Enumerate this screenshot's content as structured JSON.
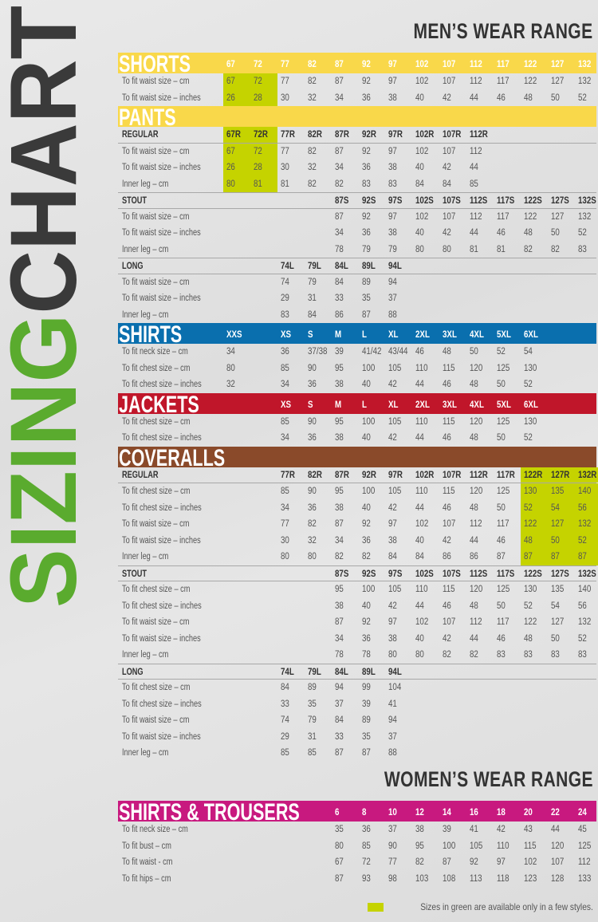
{
  "colors": {
    "green_available": "#c5d300",
    "sizing": "#5aab2e",
    "chart": "#3a3a3a"
  },
  "vertical_title": {
    "part1": "SIZING",
    "part2": "CHART"
  },
  "mens_title": "MEN’S WEAR RANGE",
  "womens_title": "WOMEN’S WEAR RANGE",
  "legend": {
    "text": "Sizes in green are available only in a few styles."
  },
  "mens_sections": [
    {
      "title": "SHORTS",
      "color": "#f9d84a",
      "bar_sizes": [
        "67",
        "72",
        "77",
        "82",
        "87",
        "92",
        "97",
        "102",
        "107",
        "112",
        "117",
        "122",
        "127",
        "132"
      ],
      "groups": [
        {
          "heading": "",
          "green_columns": [
            0,
            1
          ],
          "green_heading": false,
          "sizes": [],
          "rows": [
            {
              "label": "To fit waist size – cm",
              "values": [
                "67",
                "72",
                "77",
                "82",
                "87",
                "92",
                "97",
                "102",
                "107",
                "112",
                "117",
                "122",
                "127",
                "132"
              ]
            },
            {
              "label": "To fit waist size – inches",
              "values": [
                "26",
                "28",
                "30",
                "32",
                "34",
                "36",
                "38",
                "40",
                "42",
                "44",
                "46",
                "48",
                "50",
                "52"
              ]
            }
          ]
        }
      ]
    },
    {
      "title": "PANTS",
      "color": "#f9d84a",
      "bar_sizes": [],
      "groups": [
        {
          "heading": "REGULAR",
          "green_columns": [
            0,
            1
          ],
          "green_heading": true,
          "sizes": [
            "67R",
            "72R",
            "77R",
            "82R",
            "87R",
            "92R",
            "97R",
            "102R",
            "107R",
            "112R",
            "",
            "",
            "",
            ""
          ],
          "rows": [
            {
              "label": "To fit waist size – cm",
              "values": [
                "67",
                "72",
                "77",
                "82",
                "87",
                "92",
                "97",
                "102",
                "107",
                "112",
                "",
                "",
                "",
                ""
              ]
            },
            {
              "label": "To fit waist size – inches",
              "values": [
                "26",
                "28",
                "30",
                "32",
                "34",
                "36",
                "38",
                "40",
                "42",
                "44",
                "",
                "",
                "",
                ""
              ]
            },
            {
              "label": "Inner leg – cm",
              "values": [
                "80",
                "81",
                "81",
                "82",
                "82",
                "83",
                "83",
                "84",
                "84",
                "85",
                "",
                "",
                "",
                ""
              ]
            }
          ]
        },
        {
          "heading": "STOUT",
          "green_columns": [],
          "green_heading": false,
          "sizes": [
            "",
            "",
            "",
            "",
            "87S",
            "92S",
            "97S",
            "102S",
            "107S",
            "112S",
            "117S",
            "122S",
            "127S",
            "132S"
          ],
          "rows": [
            {
              "label": "To fit waist size – cm",
              "values": [
                "",
                "",
                "",
                "",
                "87",
                "92",
                "97",
                "102",
                "107",
                "112",
                "117",
                "122",
                "127",
                "132"
              ]
            },
            {
              "label": "To fit waist size – inches",
              "values": [
                "",
                "",
                "",
                "",
                "34",
                "36",
                "38",
                "40",
                "42",
                "44",
                "46",
                "48",
                "50",
                "52"
              ]
            },
            {
              "label": "Inner leg – cm",
              "values": [
                "",
                "",
                "",
                "",
                "78",
                "79",
                "79",
                "80",
                "80",
                "81",
                "81",
                "82",
                "82",
                "83"
              ]
            }
          ]
        },
        {
          "heading": "LONG",
          "green_columns": [],
          "green_heading": false,
          "sizes": [
            "",
            "",
            "74L",
            "79L",
            "84L",
            "89L",
            "94L",
            "",
            "",
            "",
            "",
            "",
            "",
            ""
          ],
          "rows": [
            {
              "label": "To fit waist size – cm",
              "values": [
                "",
                "",
                "74",
                "79",
                "84",
                "89",
                "94",
                "",
                "",
                "",
                "",
                "",
                "",
                ""
              ]
            },
            {
              "label": "To fit waist size – inches",
              "values": [
                "",
                "",
                "29",
                "31",
                "33",
                "35",
                "37",
                "",
                "",
                "",
                "",
                "",
                "",
                ""
              ]
            },
            {
              "label": "Inner leg – cm",
              "values": [
                "",
                "",
                "83",
                "84",
                "86",
                "87",
                "88",
                "",
                "",
                "",
                "",
                "",
                "",
                ""
              ]
            }
          ]
        }
      ]
    },
    {
      "title": "SHIRTS",
      "color": "#0a6fae",
      "bar_sizes": [
        "XXS",
        "",
        "XS",
        "S",
        "M",
        "L",
        "XL",
        "2XL",
        "3XL",
        "4XL",
        "5XL",
        "6XL",
        "",
        ""
      ],
      "groups": [
        {
          "heading": "",
          "green_columns": [],
          "green_heading": false,
          "sizes": [],
          "rows": [
            {
              "label": "To fit neck size – cm",
              "values": [
                "34",
                "",
                "36",
                "37/38",
                "39",
                "41/42",
                "43/44",
                "46",
                "48",
                "50",
                "52",
                "54",
                "",
                ""
              ]
            },
            {
              "label": "To fit chest size – cm",
              "values": [
                "80",
                "",
                "85",
                "90",
                "95",
                "100",
                "105",
                "110",
                "115",
                "120",
                "125",
                "130",
                "",
                ""
              ]
            },
            {
              "label": "To fit chest size – inches",
              "values": [
                "32",
                "",
                "34",
                "36",
                "38",
                "40",
                "42",
                "44",
                "46",
                "48",
                "50",
                "52",
                "",
                ""
              ]
            }
          ]
        }
      ]
    },
    {
      "title": "JACKETS",
      "color": "#c0162a",
      "bar_sizes": [
        "",
        "",
        "XS",
        "S",
        "M",
        "L",
        "XL",
        "2XL",
        "3XL",
        "4XL",
        "5XL",
        "6XL",
        "",
        ""
      ],
      "groups": [
        {
          "heading": "",
          "green_columns": [],
          "green_heading": false,
          "sizes": [],
          "rows": [
            {
              "label": "To fit chest size – cm",
              "values": [
                "",
                "",
                "85",
                "90",
                "95",
                "100",
                "105",
                "110",
                "115",
                "120",
                "125",
                "130",
                "",
                ""
              ]
            },
            {
              "label": "To fit chest size – inches",
              "values": [
                "",
                "",
                "34",
                "36",
                "38",
                "40",
                "42",
                "44",
                "46",
                "48",
                "50",
                "52",
                "",
                ""
              ]
            }
          ]
        }
      ]
    },
    {
      "title": "COVERALLS",
      "color": "#8a4a2a",
      "bar_sizes": [],
      "groups": [
        {
          "heading": "REGULAR",
          "green_columns": [
            11,
            12,
            13
          ],
          "green_heading": true,
          "sizes": [
            "",
            "",
            "77R",
            "82R",
            "87R",
            "92R",
            "97R",
            "102R",
            "107R",
            "112R",
            "117R",
            "122R",
            "127R",
            "132R"
          ],
          "rows": [
            {
              "label": "To fit chest size – cm",
              "values": [
                "",
                "",
                "85",
                "90",
                "95",
                "100",
                "105",
                "110",
                "115",
                "120",
                "125",
                "130",
                "135",
                "140"
              ]
            },
            {
              "label": "To fit chest size – inches",
              "values": [
                "",
                "",
                "34",
                "36",
                "38",
                "40",
                "42",
                "44",
                "46",
                "48",
                "50",
                "52",
                "54",
                "56"
              ]
            },
            {
              "label": "To fit waist size – cm",
              "values": [
                "",
                "",
                "77",
                "82",
                "87",
                "92",
                "97",
                "102",
                "107",
                "112",
                "117",
                "122",
                "127",
                "132"
              ]
            },
            {
              "label": "To fit waist size – inches",
              "values": [
                "",
                "",
                "30",
                "32",
                "34",
                "36",
                "38",
                "40",
                "42",
                "44",
                "46",
                "48",
                "50",
                "52"
              ]
            },
            {
              "label": "Inner leg – cm",
              "values": [
                "",
                "",
                "80",
                "80",
                "82",
                "82",
                "84",
                "84",
                "86",
                "86",
                "87",
                "87",
                "87",
                "87"
              ]
            }
          ]
        },
        {
          "heading": "STOUT",
          "green_columns": [],
          "green_heading": false,
          "sizes": [
            "",
            "",
            "",
            "",
            "87S",
            "92S",
            "97S",
            "102S",
            "107S",
            "112S",
            "117S",
            "122S",
            "127S",
            "132S"
          ],
          "rows": [
            {
              "label": "To fit chest size – cm",
              "values": [
                "",
                "",
                "",
                "",
                "95",
                "100",
                "105",
                "110",
                "115",
                "120",
                "125",
                "130",
                "135",
                "140"
              ]
            },
            {
              "label": "To fit chest size – inches",
              "values": [
                "",
                "",
                "",
                "",
                "38",
                "40",
                "42",
                "44",
                "46",
                "48",
                "50",
                "52",
                "54",
                "56"
              ]
            },
            {
              "label": "To fit waist size – cm",
              "values": [
                "",
                "",
                "",
                "",
                "87",
                "92",
                "97",
                "102",
                "107",
                "112",
                "117",
                "122",
                "127",
                "132"
              ]
            },
            {
              "label": "To fit waist size – inches",
              "values": [
                "",
                "",
                "",
                "",
                "34",
                "36",
                "38",
                "40",
                "42",
                "44",
                "46",
                "48",
                "50",
                "52"
              ]
            },
            {
              "label": "Inner leg – cm",
              "values": [
                "",
                "",
                "",
                "",
                "78",
                "78",
                "80",
                "80",
                "82",
                "82",
                "83",
                "83",
                "83",
                "83"
              ]
            }
          ]
        },
        {
          "heading": "LONG",
          "green_columns": [],
          "green_heading": false,
          "sizes": [
            "",
            "",
            "74L",
            "79L",
            "84L",
            "89L",
            "94L",
            "",
            "",
            "",
            "",
            "",
            "",
            ""
          ],
          "rows": [
            {
              "label": "To fit chest size – cm",
              "values": [
                "",
                "",
                "84",
                "89",
                "94",
                "99",
                "104",
                "",
                "",
                "",
                "",
                "",
                "",
                ""
              ]
            },
            {
              "label": "To fit chest size – inches",
              "values": [
                "",
                "",
                "33",
                "35",
                "37",
                "39",
                "41",
                "",
                "",
                "",
                "",
                "",
                "",
                ""
              ]
            },
            {
              "label": "To fit waist size – cm",
              "values": [
                "",
                "",
                "74",
                "79",
                "84",
                "89",
                "94",
                "",
                "",
                "",
                "",
                "",
                "",
                ""
              ]
            },
            {
              "label": "To fit waist size – inches",
              "values": [
                "",
                "",
                "29",
                "31",
                "33",
                "35",
                "37",
                "",
                "",
                "",
                "",
                "",
                "",
                ""
              ]
            },
            {
              "label": "Inner leg – cm",
              "values": [
                "",
                "",
                "85",
                "85",
                "87",
                "87",
                "88",
                "",
                "",
                "",
                "",
                "",
                "",
                ""
              ]
            }
          ]
        }
      ]
    }
  ],
  "womens_sections": [
    {
      "title": "SHIRTS & TROUSERS",
      "color": "#c8197f",
      "bar_sizes": [
        "",
        "",
        "",
        "",
        "6",
        "8",
        "10",
        "12",
        "14",
        "16",
        "18",
        "20",
        "22",
        "24"
      ],
      "groups": [
        {
          "heading": "",
          "green_columns": [],
          "green_heading": false,
          "sizes": [],
          "rows": [
            {
              "label": "To fit neck size – cm",
              "values": [
                "",
                "",
                "",
                "",
                "35",
                "36",
                "37",
                "38",
                "39",
                "41",
                "42",
                "43",
                "44",
                "45"
              ]
            },
            {
              "label": "To fit bust – cm",
              "values": [
                "",
                "",
                "",
                "",
                "80",
                "85",
                "90",
                "95",
                "100",
                "105",
                "110",
                "115",
                "120",
                "125"
              ]
            },
            {
              "label": "To fit waist - cm",
              "values": [
                "",
                "",
                "",
                "",
                "67",
                "72",
                "77",
                "82",
                "87",
                "92",
                "97",
                "102",
                "107",
                "112"
              ]
            },
            {
              "label": "To fit hips – cm",
              "values": [
                "",
                "",
                "",
                "",
                "87",
                "93",
                "98",
                "103",
                "108",
                "113",
                "118",
                "123",
                "128",
                "133"
              ]
            }
          ]
        }
      ]
    }
  ]
}
